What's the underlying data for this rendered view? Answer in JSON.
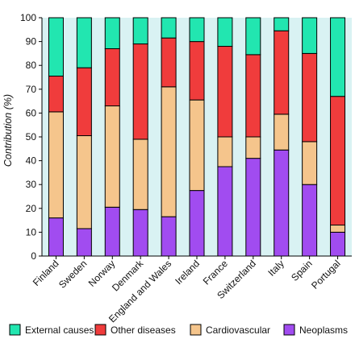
{
  "chart_data": {
    "type": "bar",
    "stacked": true,
    "title": "",
    "xlabel": "",
    "ylabel": "Contribution (%)",
    "ylim": [
      0,
      100
    ],
    "yticks": [
      0,
      10,
      20,
      30,
      40,
      50,
      60,
      70,
      80,
      90,
      100
    ],
    "grid": false,
    "legend_position": "bottom",
    "background_color": "#d9f2f3",
    "categories": [
      "Finland",
      "Sweden",
      "Norway",
      "Denmark",
      "England and Wales",
      "Ireland",
      "France",
      "Switzerland",
      "Italy",
      "Spain",
      "Portugal"
    ],
    "series": [
      {
        "name": "Neoplasms",
        "color": "#a14cf0",
        "values": [
          16,
          11.5,
          20.5,
          19.5,
          16.5,
          27.5,
          37.5,
          41,
          44.5,
          30,
          10
        ]
      },
      {
        "name": "Cardiovascular",
        "color": "#f5c58c",
        "values": [
          44.5,
          39,
          42.5,
          29.5,
          54.5,
          38,
          12.5,
          9,
          15,
          18,
          3
        ]
      },
      {
        "name": "Other diseases",
        "color": "#f03c3c",
        "values": [
          15,
          28.5,
          24,
          40,
          20.5,
          24.5,
          38,
          34.5,
          35,
          37,
          54
        ]
      },
      {
        "name": "External causes",
        "color": "#22e6b0",
        "values": [
          24.5,
          21,
          13,
          11,
          8.5,
          10,
          12,
          15.5,
          5.5,
          15,
          33
        ]
      }
    ],
    "legend_order": [
      "External causes",
      "Other diseases",
      "Cardiovascular",
      "Neoplasms"
    ]
  }
}
